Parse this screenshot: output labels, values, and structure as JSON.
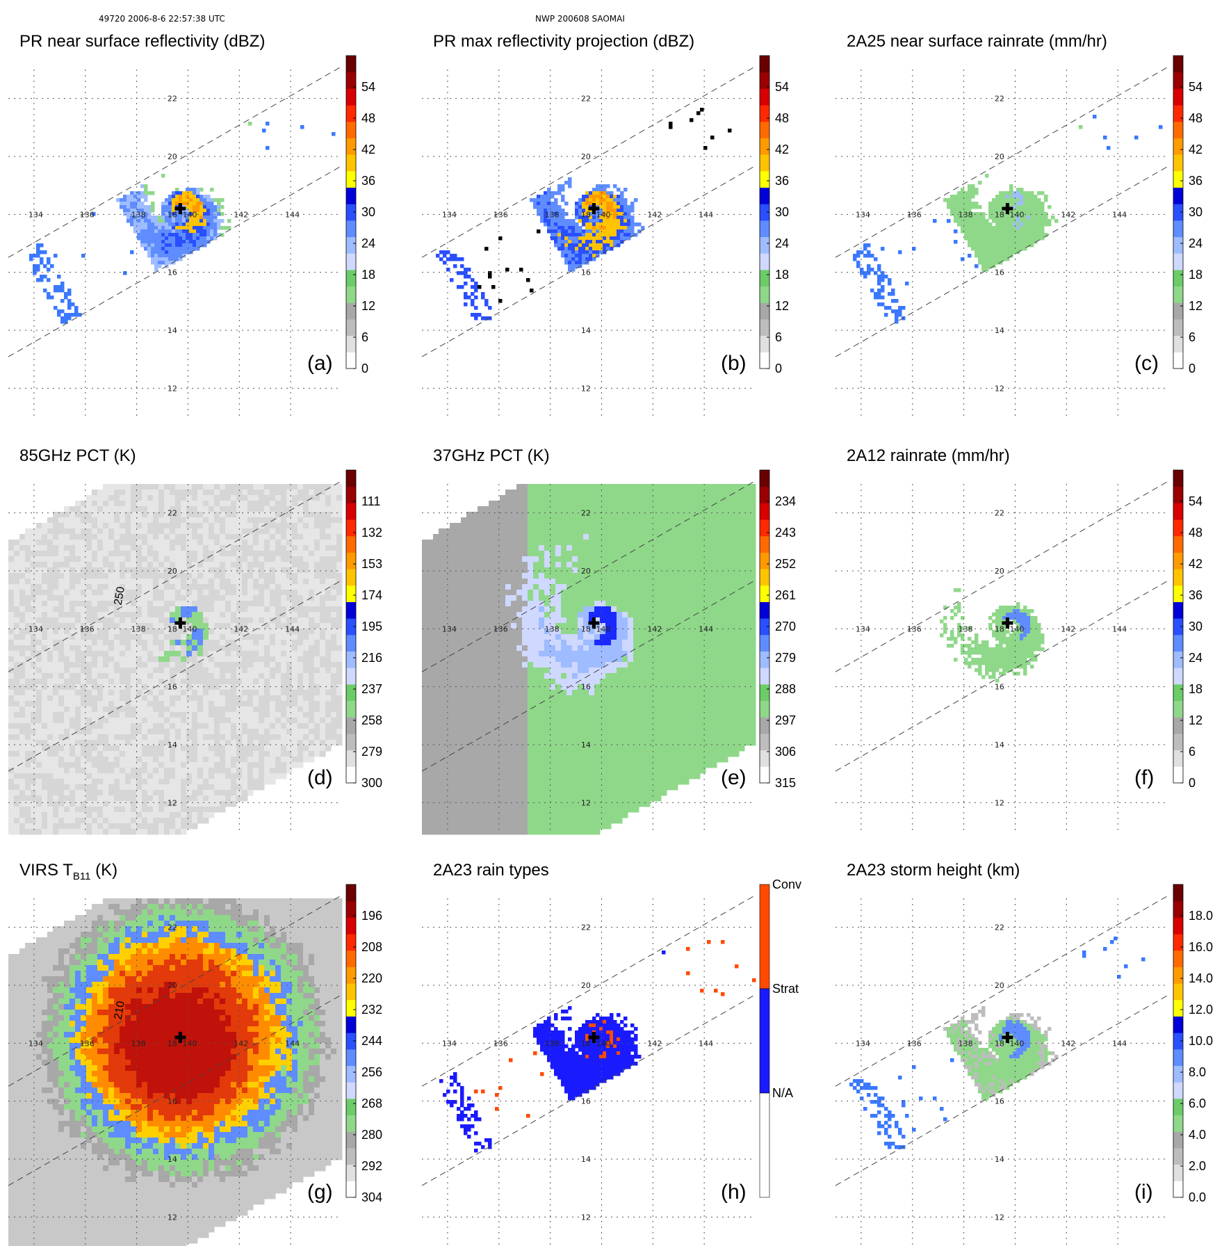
{
  "header": {
    "left": "49720 2006-8-6 22:57:38 UTC",
    "center": "NWP 200608 SAOMAI"
  },
  "map": {
    "lon_labels": [
      "134",
      "136",
      "138",
      "140",
      "142",
      "144"
    ],
    "lat_labels": [
      "22",
      "20",
      "18",
      "16",
      "14",
      "12"
    ],
    "lon_range": [
      133,
      146
    ],
    "lat_range": [
      11,
      23
    ],
    "center": {
      "lon": 139.7,
      "lat": 18.2
    }
  },
  "chart_data": [
    {
      "type": "heatmap",
      "id": "a",
      "title": "PR near surface reflectivity (dBZ)",
      "letter": "(a)",
      "colorbar": {
        "min": 0,
        "max": 60,
        "ticks": [
          "54",
          "48",
          "42",
          "36",
          "30",
          "24",
          "18",
          "12",
          "6",
          "0"
        ]
      },
      "swath": "pr",
      "style": "ref"
    },
    {
      "type": "heatmap",
      "id": "b",
      "title": "PR max reflectivity projection (dBZ)",
      "letter": "(b)",
      "colorbar": {
        "min": 0,
        "max": 60,
        "ticks": [
          "54",
          "48",
          "42",
          "36",
          "30",
          "24",
          "18",
          "12",
          "6",
          "0"
        ]
      },
      "swath": "pr",
      "style": "maxref"
    },
    {
      "type": "heatmap",
      "id": "c",
      "title": "2A25 near surface rainrate (mm/hr)",
      "letter": "(c)",
      "colorbar": {
        "min": 0,
        "max": 60,
        "ticks": [
          "54",
          "48",
          "42",
          "36",
          "30",
          "24",
          "18",
          "12",
          "6",
          "0"
        ]
      },
      "swath": "pr",
      "style": "rain"
    },
    {
      "type": "heatmap",
      "id": "d",
      "title": "85GHz PCT (K)",
      "letter": "(d)",
      "colorbar": {
        "min": 90,
        "max": 300,
        "ticks": [
          "111",
          "132",
          "153",
          "174",
          "195",
          "216",
          "237",
          "258",
          "279",
          "300"
        ]
      },
      "swath": "tmi",
      "style": "pct85",
      "contour_label": "250"
    },
    {
      "type": "heatmap",
      "id": "e",
      "title": "37GHz PCT (K)",
      "letter": "(e)",
      "colorbar": {
        "min": 225,
        "max": 315,
        "ticks": [
          "234",
          "243",
          "252",
          "261",
          "270",
          "279",
          "288",
          "297",
          "306",
          "315"
        ]
      },
      "swath": "tmi",
      "style": "pct37"
    },
    {
      "type": "heatmap",
      "id": "f",
      "title": "2A12 rainrate (mm/hr)",
      "letter": "(f)",
      "colorbar": {
        "min": 0,
        "max": 60,
        "ticks": [
          "54",
          "48",
          "42",
          "36",
          "30",
          "24",
          "18",
          "12",
          "6",
          "0"
        ]
      },
      "swath": "none",
      "style": "rain12"
    },
    {
      "type": "heatmap",
      "id": "g",
      "title_main": "VIRS T",
      "title_sub": "B11",
      "title_unit": " (K)",
      "letter": "(g)",
      "colorbar": {
        "min": 184,
        "max": 304,
        "ticks": [
          "196",
          "208",
          "220",
          "232",
          "244",
          "256",
          "268",
          "280",
          "292",
          "304"
        ]
      },
      "swath": "virs",
      "style": "virs",
      "contour_label": "210"
    },
    {
      "type": "heatmap",
      "id": "h",
      "title": "2A23 rain types",
      "letter": "(h)",
      "colorbar": {
        "categories": [
          "Conv",
          "Strat",
          "N/A"
        ]
      },
      "swath": "pr",
      "style": "types"
    },
    {
      "type": "heatmap",
      "id": "i",
      "title": "2A23 storm height (km)",
      "letter": "(i)",
      "colorbar": {
        "min": 0,
        "max": 20,
        "ticks": [
          "18.0",
          "16.0",
          "14.0",
          "12.0",
          "10.0",
          "8.0",
          "6.0",
          "4.0",
          "2.0",
          "0.0"
        ]
      },
      "swath": "pr",
      "style": "height"
    }
  ]
}
